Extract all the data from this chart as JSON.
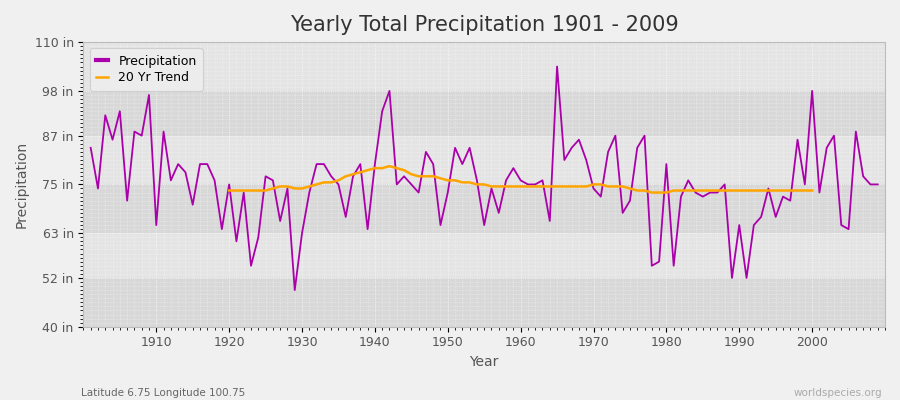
{
  "title": "Yearly Total Precipitation 1901 - 2009",
  "xlabel": "Year",
  "ylabel": "Precipitation",
  "subtitle_left": "Latitude 6.75 Longitude 100.75",
  "subtitle_right": "worldspecies.org",
  "years": [
    1901,
    1902,
    1903,
    1904,
    1905,
    1906,
    1907,
    1908,
    1909,
    1910,
    1911,
    1912,
    1913,
    1914,
    1915,
    1916,
    1917,
    1918,
    1919,
    1920,
    1921,
    1922,
    1923,
    1924,
    1925,
    1926,
    1927,
    1928,
    1929,
    1930,
    1931,
    1932,
    1933,
    1934,
    1935,
    1936,
    1937,
    1938,
    1939,
    1940,
    1941,
    1942,
    1943,
    1944,
    1945,
    1946,
    1947,
    1948,
    1949,
    1950,
    1951,
    1952,
    1953,
    1954,
    1955,
    1956,
    1957,
    1958,
    1959,
    1960,
    1961,
    1962,
    1963,
    1964,
    1965,
    1966,
    1967,
    1968,
    1969,
    1970,
    1971,
    1972,
    1973,
    1974,
    1975,
    1976,
    1977,
    1978,
    1979,
    1980,
    1981,
    1982,
    1983,
    1984,
    1985,
    1986,
    1987,
    1988,
    1989,
    1990,
    1991,
    1992,
    1993,
    1994,
    1995,
    1996,
    1997,
    1998,
    1999,
    2000,
    2001,
    2002,
    2003,
    2004,
    2005,
    2006,
    2007,
    2008,
    2009
  ],
  "precip": [
    84,
    74,
    92,
    86,
    93,
    71,
    88,
    87,
    97,
    65,
    88,
    76,
    80,
    78,
    70,
    80,
    80,
    76,
    64,
    75,
    61,
    73,
    55,
    62,
    77,
    76,
    66,
    74,
    49,
    63,
    73,
    80,
    80,
    77,
    75,
    67,
    77,
    80,
    64,
    80,
    93,
    98,
    75,
    77,
    75,
    73,
    83,
    80,
    65,
    73,
    84,
    80,
    84,
    76,
    65,
    74,
    68,
    76,
    79,
    76,
    75,
    75,
    76,
    66,
    104,
    81,
    84,
    86,
    81,
    74,
    72,
    83,
    87,
    68,
    71,
    84,
    87,
    55,
    56,
    80,
    55,
    72,
    76,
    73,
    72,
    73,
    73,
    75,
    52,
    65,
    52,
    65,
    67,
    74,
    67,
    72,
    71,
    86,
    75,
    98,
    73,
    84,
    87,
    65,
    64,
    88,
    77,
    75,
    75
  ],
  "trend_years": [
    1920,
    1921,
    1922,
    1923,
    1924,
    1925,
    1926,
    1927,
    1928,
    1929,
    1930,
    1931,
    1932,
    1933,
    1934,
    1935,
    1936,
    1937,
    1938,
    1939,
    1940,
    1941,
    1942,
    1943,
    1944,
    1945,
    1946,
    1947,
    1948,
    1949,
    1950,
    1951,
    1952,
    1953,
    1954,
    1955,
    1956,
    1957,
    1958,
    1959,
    1960,
    1961,
    1962,
    1963,
    1964,
    1965,
    1966,
    1967,
    1968,
    1969,
    1970,
    1971,
    1972,
    1973,
    1974,
    1975,
    1976,
    1977,
    1978,
    1979,
    1980,
    1981,
    1982,
    1983,
    1984,
    1985,
    1986,
    1987,
    1988,
    1989,
    1990,
    1991,
    1992,
    1993,
    1994,
    1995,
    1996,
    1997,
    1998,
    1999,
    2000
  ],
  "trend": [
    73.5,
    73.5,
    73.5,
    73.5,
    73.5,
    73.5,
    74.0,
    74.5,
    74.5,
    74.0,
    74.0,
    74.5,
    75.0,
    75.5,
    75.5,
    76.0,
    77.0,
    77.5,
    78.0,
    78.5,
    79.0,
    79.0,
    79.5,
    79.0,
    78.5,
    77.5,
    77.0,
    77.0,
    77.0,
    76.5,
    76.0,
    76.0,
    75.5,
    75.5,
    75.0,
    75.0,
    74.5,
    74.5,
    74.5,
    74.5,
    74.5,
    74.5,
    74.5,
    74.5,
    74.5,
    74.5,
    74.5,
    74.5,
    74.5,
    74.5,
    75.0,
    75.0,
    74.5,
    74.5,
    74.5,
    74.0,
    73.5,
    73.5,
    73.0,
    73.0,
    73.0,
    73.5,
    73.5,
    73.5,
    73.5,
    73.5,
    73.5,
    73.5,
    73.5,
    73.5,
    73.5,
    73.5,
    73.5,
    73.5,
    73.5,
    73.5,
    73.5,
    73.5,
    73.5,
    73.5,
    73.5
  ],
  "ylim": [
    40,
    110
  ],
  "yticks": [
    40,
    52,
    63,
    75,
    87,
    98,
    110
  ],
  "ytick_labels": [
    "40 in",
    "52 in",
    "63 in",
    "75 in",
    "87 in",
    "98 in",
    "110 in"
  ],
  "band_edges": [
    40,
    52,
    63,
    75,
    87,
    98,
    110
  ],
  "xlim": [
    1900,
    2010
  ],
  "xticks": [
    1910,
    1920,
    1930,
    1940,
    1950,
    1960,
    1970,
    1980,
    1990,
    2000
  ],
  "precip_color": "#aa00aa",
  "trend_color": "#FFA500",
  "fig_bg_color": "#f0f0f0",
  "band_colors": [
    "#d8d8d8",
    "#e4e4e4",
    "#d8d8d8",
    "#e4e4e4",
    "#d8d8d8",
    "#e4e4e4"
  ],
  "grid_color": "#ffffff",
  "title_fontsize": 15,
  "axis_label_fontsize": 10,
  "tick_fontsize": 9,
  "subtitle_left_color": "#666666",
  "subtitle_right_color": "#aaaaaa"
}
